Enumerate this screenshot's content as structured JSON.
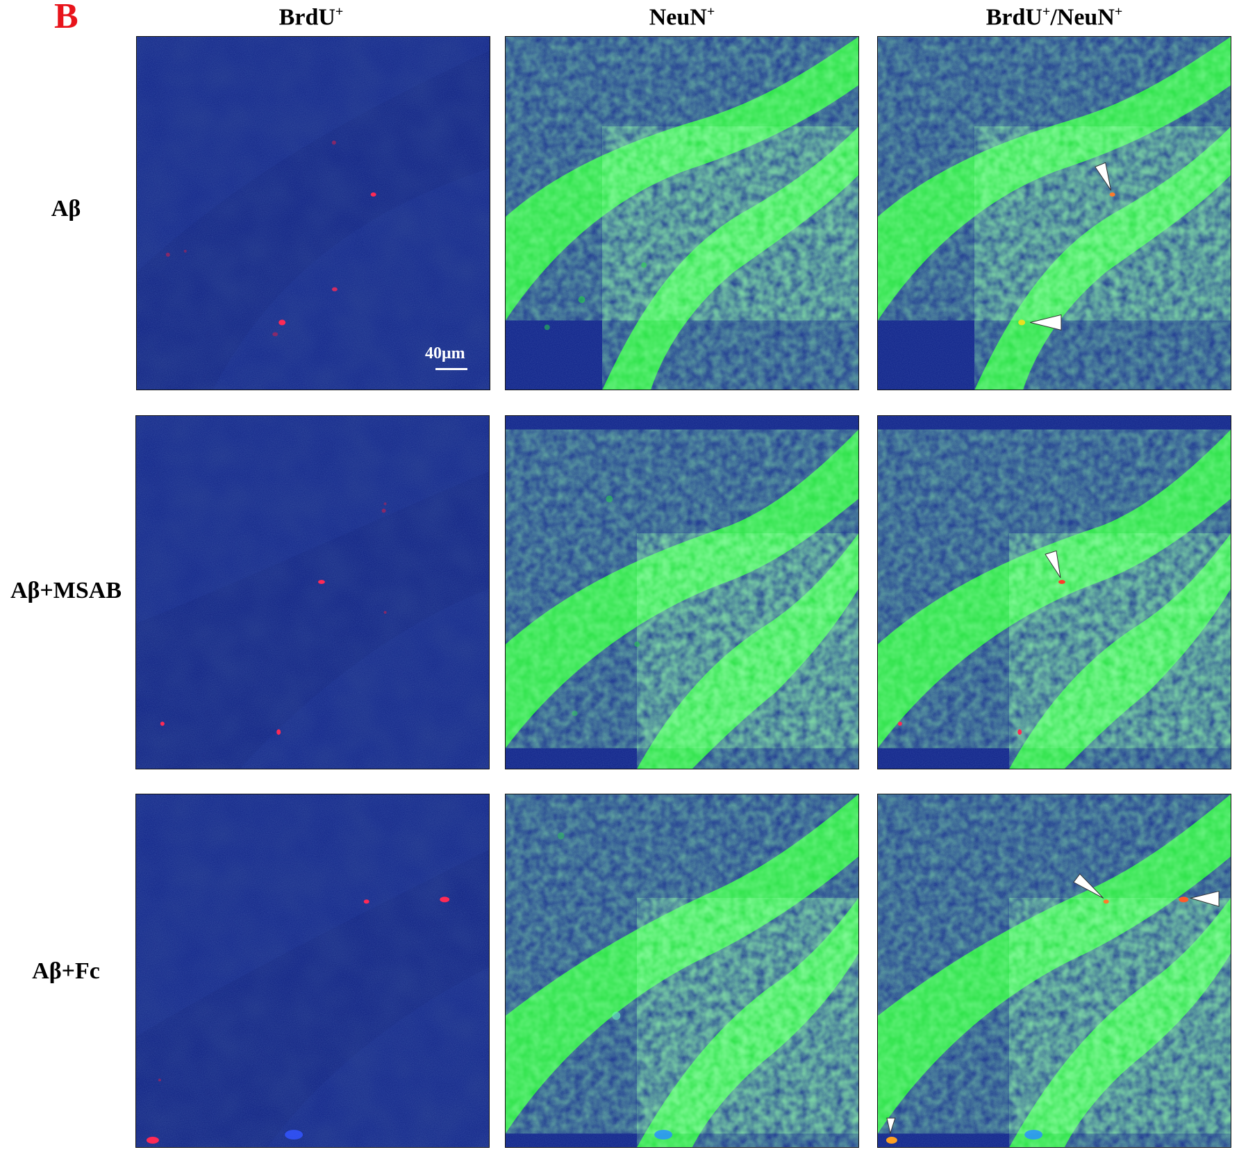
{
  "figure": {
    "panel_letter": "B",
    "columns": [
      {
        "label": "BrdU",
        "sup": "+"
      },
      {
        "label": "NeuN",
        "sup": "+"
      },
      {
        "label": "BrdU",
        "sup": "+",
        "label2": "/NeuN",
        "sup2": "+"
      }
    ],
    "rows": [
      {
        "label": "Aβ"
      },
      {
        "label": "Aβ+MSAB"
      },
      {
        "label": "Aβ+Fc"
      }
    ],
    "scale_bar": "40μm",
    "colors": {
      "background_blue": "#0c1f86",
      "neun_green": "#27e043",
      "brdu_red": "#ff2a55",
      "arrowhead": "#ffffff",
      "panel_letter": "#e8141b"
    }
  }
}
